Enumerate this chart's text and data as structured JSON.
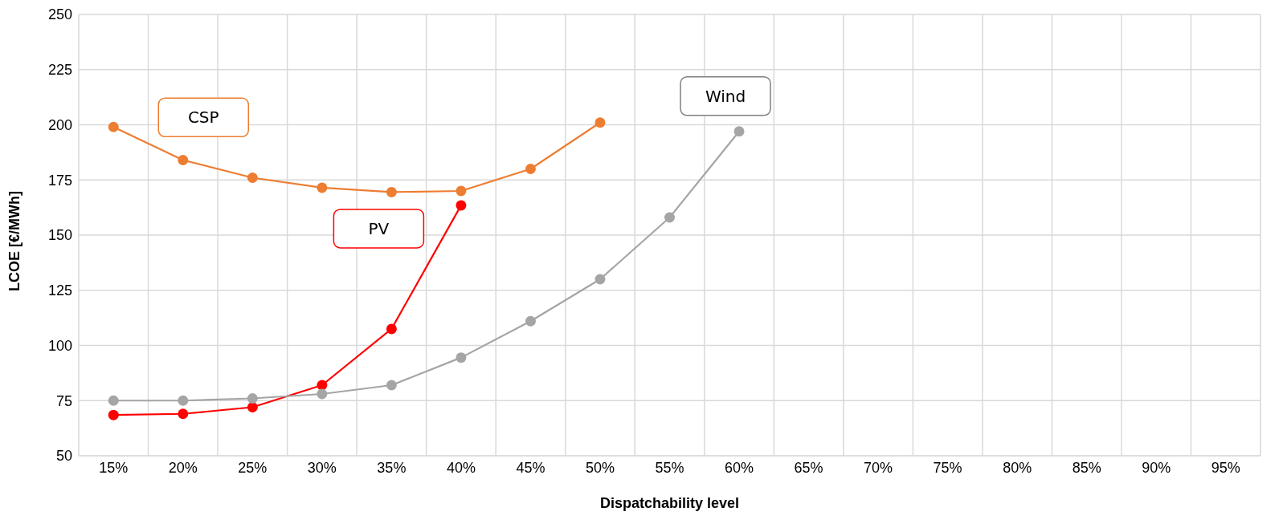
{
  "chart_data": {
    "type": "line",
    "xlabel": "Dispatchability level",
    "ylabel": "LCOE [€/MWh]",
    "categories": [
      "15%",
      "20%",
      "25%",
      "30%",
      "35%",
      "40%",
      "45%",
      "50%",
      "55%",
      "60%",
      "65%",
      "70%",
      "75%",
      "80%",
      "85%",
      "90%",
      "95%"
    ],
    "series": [
      {
        "name": "CSP",
        "color": "#ed7d31",
        "values": [
          199,
          184,
          176,
          171.5,
          169.5,
          170,
          180,
          201,
          null,
          null,
          null,
          null,
          null,
          null,
          null,
          null,
          null
        ]
      },
      {
        "name": "PV",
        "color": "#ff0000",
        "values": [
          68.5,
          69,
          72,
          82,
          107.5,
          163.5,
          null,
          null,
          null,
          null,
          null,
          null,
          null,
          null,
          null,
          null,
          null
        ]
      },
      {
        "name": "Wind",
        "color": "#a5a5a5",
        "values": [
          75,
          75,
          76,
          78,
          82,
          94.5,
          111,
          130,
          158,
          197,
          null,
          null,
          null,
          null,
          null,
          null,
          null
        ]
      }
    ],
    "ylim": [
      50,
      250
    ],
    "yticks": [
      50,
      75,
      100,
      125,
      150,
      175,
      200,
      225,
      250
    ],
    "grid": true,
    "legend": false,
    "marker": "circle",
    "line_style": "solid"
  }
}
